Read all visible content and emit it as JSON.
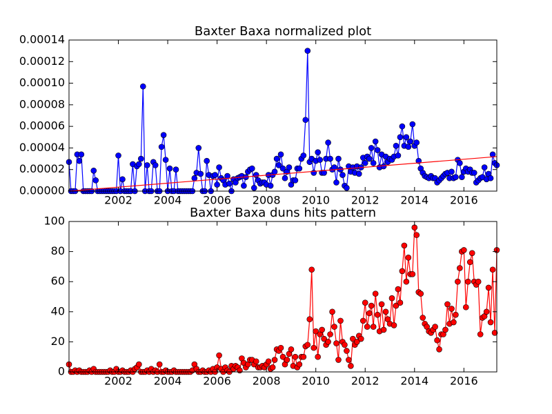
{
  "chart_data": [
    {
      "type": "line",
      "title": "Baxter Baxa normalized plot",
      "x": [
        2000,
        2000.083,
        2000.167,
        2000.25,
        2000.333,
        2000.417,
        2000.5,
        2000.583,
        2000.667,
        2000.75,
        2000.833,
        2000.917,
        2001,
        2001.083,
        2001.167,
        2001.25,
        2001.333,
        2001.417,
        2001.5,
        2001.583,
        2001.667,
        2001.75,
        2001.833,
        2001.917,
        2002,
        2002.083,
        2002.167,
        2002.25,
        2002.333,
        2002.417,
        2002.5,
        2002.583,
        2002.667,
        2002.75,
        2002.833,
        2002.917,
        2003,
        2003.083,
        2003.167,
        2003.25,
        2003.333,
        2003.417,
        2003.5,
        2003.583,
        2003.667,
        2003.75,
        2003.833,
        2003.917,
        2004,
        2004.083,
        2004.167,
        2004.25,
        2004.333,
        2004.417,
        2004.5,
        2004.583,
        2004.667,
        2004.75,
        2004.833,
        2004.917,
        2005,
        2005.083,
        2005.167,
        2005.25,
        2005.333,
        2005.417,
        2005.5,
        2005.583,
        2005.667,
        2005.75,
        2005.833,
        2005.917,
        2006,
        2006.083,
        2006.167,
        2006.25,
        2006.333,
        2006.417,
        2006.5,
        2006.583,
        2006.667,
        2006.75,
        2006.833,
        2006.917,
        2007,
        2007.083,
        2007.167,
        2007.25,
        2007.333,
        2007.417,
        2007.5,
        2007.583,
        2007.667,
        2007.75,
        2007.833,
        2007.917,
        2008,
        2008.083,
        2008.167,
        2008.25,
        2008.333,
        2008.417,
        2008.5,
        2008.583,
        2008.667,
        2008.75,
        2008.833,
        2008.917,
        2009,
        2009.083,
        2009.167,
        2009.25,
        2009.333,
        2009.417,
        2009.5,
        2009.583,
        2009.667,
        2009.75,
        2009.833,
        2009.917,
        2010,
        2010.083,
        2010.167,
        2010.25,
        2010.333,
        2010.417,
        2010.5,
        2010.583,
        2010.667,
        2010.75,
        2010.833,
        2010.917,
        2011,
        2011.083,
        2011.167,
        2011.25,
        2011.333,
        2011.417,
        2011.5,
        2011.583,
        2011.667,
        2011.75,
        2011.833,
        2011.917,
        2012,
        2012.083,
        2012.167,
        2012.25,
        2012.333,
        2012.417,
        2012.5,
        2012.583,
        2012.667,
        2012.75,
        2012.833,
        2012.917,
        2013,
        2013.083,
        2013.167,
        2013.25,
        2013.333,
        2013.417,
        2013.5,
        2013.583,
        2013.667,
        2013.75,
        2013.833,
        2013.917,
        2014,
        2014.083,
        2014.167,
        2014.25,
        2014.333,
        2014.417,
        2014.5,
        2014.583,
        2014.667,
        2014.75,
        2014.833,
        2014.917,
        2015,
        2015.083,
        2015.167,
        2015.25,
        2015.333,
        2015.417,
        2015.5,
        2015.583,
        2015.667,
        2015.75,
        2015.833,
        2015.917,
        2016,
        2016.083,
        2016.167,
        2016.25,
        2016.333,
        2016.417,
        2016.5,
        2016.583,
        2016.667,
        2016.75,
        2016.833,
        2016.917,
        2017,
        2017.083,
        2017.167,
        2017.25,
        2017.333
      ],
      "series": [
        {
          "color": "#0000ff",
          "values": [
            2.7e-05,
            0,
            0,
            0,
            3.4e-05,
            2.8e-05,
            3.4e-05,
            0,
            0,
            0,
            0,
            0,
            1.9e-05,
            1e-05,
            0,
            0,
            0,
            0,
            0,
            0,
            0,
            0,
            0,
            0,
            3.3e-05,
            0,
            1.1e-05,
            0,
            0,
            0,
            0,
            2.5e-05,
            0,
            2.3e-05,
            2.5e-05,
            3e-05,
            9.7e-05,
            0,
            2.4e-05,
            0,
            0,
            2.7e-05,
            2.4e-05,
            0,
            0,
            4.1e-05,
            5.2e-05,
            2.9e-05,
            0,
            2.1e-05,
            0,
            0,
            2e-05,
            0,
            0,
            0,
            0,
            0,
            0,
            0,
            0,
            1.2e-05,
            1.7e-05,
            4e-05,
            1.6e-05,
            0,
            0,
            2.8e-05,
            1.5e-05,
            0,
            1.4e-05,
            1.5e-05,
            6e-06,
            2.2e-05,
            1.2e-05,
            1e-05,
            6e-06,
            1.4e-05,
            7e-06,
            0,
            1.1e-05,
            8e-06,
            1.2e-05,
            1.3e-05,
            1.4e-05,
            5e-06,
            1.3e-05,
            1.8e-05,
            2e-05,
            2.1e-05,
            3e-06,
            1.5e-05,
            1e-05,
            7e-06,
            8e-06,
            8e-06,
            6e-06,
            1.5e-05,
            5e-06,
            1.5e-05,
            1.8e-05,
            3e-05,
            2.4e-05,
            3.4e-05,
            2.1e-05,
            1.2e-05,
            1.8e-05,
            2.2e-05,
            6e-06,
            1e-05,
            1e-05,
            2.1e-05,
            2.1e-05,
            3e-05,
            3.3e-05,
            6.6e-05,
            0.00013,
            2.7e-05,
            3e-05,
            1.7e-05,
            2.8e-05,
            3.6e-05,
            2.9e-05,
            1.7e-05,
            1.7e-05,
            3e-05,
            4.5e-05,
            3e-05,
            2e-05,
            2.2e-05,
            8e-06,
            3e-05,
            2e-05,
            1.5e-05,
            5e-06,
            3e-06,
            2.3e-05,
            1.8e-05,
            2.2e-05,
            1.7e-05,
            2.3e-05,
            1.6e-05,
            2.2e-05,
            3.1e-05,
            2.6e-05,
            3.2e-05,
            3e-05,
            4e-05,
            2.6e-05,
            4.6e-05,
            3.8e-05,
            2.2e-05,
            3.4e-05,
            2.3e-05,
            3.2e-05,
            2.7e-05,
            3e-05,
            2.9e-05,
            3.2e-05,
            4.2e-05,
            3.3e-05,
            5e-05,
            6e-05,
            4.2e-05,
            5e-05,
            4.1e-05,
            4.6e-05,
            6.2e-05,
            4.2e-05,
            4.5e-05,
            2.8e-05,
            2.1e-05,
            1.7e-05,
            1.4e-05,
            1.3e-05,
            1.2e-05,
            1.4e-05,
            1.2e-05,
            1.2e-05,
            8e-06,
            1e-05,
            1.2e-05,
            1.4e-05,
            1.6e-05,
            1.7e-05,
            1.2e-05,
            1.8e-05,
            1.2e-05,
            1.3e-05,
            2.9e-05,
            2.6e-05,
            1.3e-05,
            1.8e-05,
            2.1e-05,
            1.8e-05,
            2e-05,
            1.7e-05,
            1.7e-05,
            8e-06,
            1e-05,
            1.2e-05,
            1.3e-05,
            2.2e-05,
            1.1e-05,
            1.6e-05,
            1.2e-05,
            3.4e-05,
            2.6e-05,
            2.4e-05
          ]
        }
      ],
      "trend_line": {
        "x": [
          2000,
          2017.333
        ],
        "values": [
          0,
          3.2e-05
        ],
        "color": "#ff0000"
      },
      "xlim": [
        2000,
        2017.333
      ],
      "xticks": [
        2002,
        2004,
        2006,
        2008,
        2010,
        2012,
        2014,
        2016
      ],
      "ylim": [
        0,
        0.00014
      ],
      "yticks": [
        {
          "value": 0,
          "label": "0.00000"
        },
        {
          "value": 2e-05,
          "label": "0.00002"
        },
        {
          "value": 4e-05,
          "label": "0.00004"
        },
        {
          "value": 6e-05,
          "label": "0.00006"
        },
        {
          "value": 8e-05,
          "label": "0.00008"
        },
        {
          "value": 0.0001,
          "label": "0.00010"
        },
        {
          "value": 0.00012,
          "label": "0.00012"
        },
        {
          "value": 0.00014,
          "label": "0.00014"
        }
      ],
      "grid": false
    },
    {
      "type": "line",
      "title": "Baxter Baxa duns hits pattern",
      "x": [
        2000,
        2000.083,
        2000.167,
        2000.25,
        2000.333,
        2000.417,
        2000.5,
        2000.583,
        2000.667,
        2000.75,
        2000.833,
        2000.917,
        2001,
        2001.083,
        2001.167,
        2001.25,
        2001.333,
        2001.417,
        2001.5,
        2001.583,
        2001.667,
        2001.75,
        2001.833,
        2001.917,
        2002,
        2002.083,
        2002.167,
        2002.25,
        2002.333,
        2002.417,
        2002.5,
        2002.583,
        2002.667,
        2002.75,
        2002.833,
        2002.917,
        2003,
        2003.083,
        2003.167,
        2003.25,
        2003.333,
        2003.417,
        2003.5,
        2003.583,
        2003.667,
        2003.75,
        2003.833,
        2003.917,
        2004,
        2004.083,
        2004.167,
        2004.25,
        2004.333,
        2004.417,
        2004.5,
        2004.583,
        2004.667,
        2004.75,
        2004.833,
        2004.917,
        2005,
        2005.083,
        2005.167,
        2005.25,
        2005.333,
        2005.417,
        2005.5,
        2005.583,
        2005.667,
        2005.75,
        2005.833,
        2005.917,
        2006,
        2006.083,
        2006.167,
        2006.25,
        2006.333,
        2006.417,
        2006.5,
        2006.583,
        2006.667,
        2006.75,
        2006.833,
        2006.917,
        2007,
        2007.083,
        2007.167,
        2007.25,
        2007.333,
        2007.417,
        2007.5,
        2007.583,
        2007.667,
        2007.75,
        2007.833,
        2007.917,
        2008,
        2008.083,
        2008.167,
        2008.25,
        2008.333,
        2008.417,
        2008.5,
        2008.583,
        2008.667,
        2008.75,
        2008.833,
        2008.917,
        2009,
        2009.083,
        2009.167,
        2009.25,
        2009.333,
        2009.417,
        2009.5,
        2009.583,
        2009.667,
        2009.75,
        2009.833,
        2009.917,
        2010,
        2010.083,
        2010.167,
        2010.25,
        2010.333,
        2010.417,
        2010.5,
        2010.583,
        2010.667,
        2010.75,
        2010.833,
        2010.917,
        2011,
        2011.083,
        2011.167,
        2011.25,
        2011.333,
        2011.417,
        2011.5,
        2011.583,
        2011.667,
        2011.75,
        2011.833,
        2011.917,
        2012,
        2012.083,
        2012.167,
        2012.25,
        2012.333,
        2012.417,
        2012.5,
        2012.583,
        2012.667,
        2012.75,
        2012.833,
        2012.917,
        2013,
        2013.083,
        2013.167,
        2013.25,
        2013.333,
        2013.417,
        2013.5,
        2013.583,
        2013.667,
        2013.75,
        2013.833,
        2013.917,
        2014,
        2014.083,
        2014.167,
        2014.25,
        2014.333,
        2014.417,
        2014.5,
        2014.583,
        2014.667,
        2014.75,
        2014.833,
        2014.917,
        2015,
        2015.083,
        2015.167,
        2015.25,
        2015.333,
        2015.417,
        2015.5,
        2015.583,
        2015.667,
        2015.75,
        2015.833,
        2015.917,
        2016,
        2016.083,
        2016.167,
        2016.25,
        2016.333,
        2016.417,
        2016.5,
        2016.583,
        2016.667,
        2016.75,
        2016.833,
        2016.917,
        2017,
        2017.083,
        2017.167,
        2017.25,
        2017.333
      ],
      "series": [
        {
          "color": "#ff0000",
          "values": [
            5,
            0,
            0,
            1,
            0,
            1,
            0,
            0,
            0,
            0,
            1,
            0,
            2,
            0,
            0,
            0,
            0,
            0,
            0,
            0,
            1,
            0,
            0,
            2,
            0,
            0,
            1,
            0,
            0,
            0,
            1,
            0,
            2,
            3,
            5,
            0,
            0,
            0,
            1,
            0,
            2,
            0,
            1,
            0,
            5,
            0,
            0,
            1,
            0,
            0,
            0,
            1,
            0,
            0,
            0,
            0,
            0,
            0,
            0,
            0,
            1,
            5,
            2,
            0,
            0,
            1,
            0,
            0,
            1,
            0,
            2,
            0,
            3,
            11,
            2,
            0,
            3,
            1,
            0,
            4,
            2,
            4,
            3,
            1,
            9,
            6,
            3,
            5,
            8,
            8,
            5,
            7,
            3,
            3,
            4,
            3,
            5,
            7,
            2,
            3,
            8,
            15,
            14,
            16,
            10,
            5,
            8,
            12,
            15,
            4,
            10,
            3,
            5,
            10,
            10,
            17,
            18,
            35,
            68,
            16,
            27,
            10,
            25,
            28,
            22,
            18,
            20,
            25,
            40,
            30,
            19,
            8,
            34,
            20,
            18,
            14,
            8,
            4,
            22,
            18,
            20,
            24,
            22,
            34,
            46,
            30,
            39,
            44,
            30,
            52,
            38,
            27,
            45,
            28,
            40,
            35,
            32,
            49,
            31,
            44,
            55,
            46,
            67,
            84,
            60,
            76,
            65,
            65,
            96,
            91,
            53,
            52,
            36,
            32,
            30,
            27,
            26,
            28,
            30,
            21,
            15,
            25,
            25,
            28,
            45,
            32,
            42,
            33,
            38,
            60,
            69,
            80,
            81,
            43,
            60,
            73,
            79,
            60,
            58,
            60,
            25,
            36,
            37,
            40,
            56,
            33,
            68,
            26,
            81
          ]
        }
      ],
      "xlim": [
        2000,
        2017.333
      ],
      "xticks": [
        2002,
        2004,
        2006,
        2008,
        2010,
        2012,
        2014,
        2016
      ],
      "ylim": [
        0,
        100
      ],
      "yticks": [
        0,
        20,
        40,
        60,
        80,
        100
      ],
      "grid": false
    }
  ]
}
